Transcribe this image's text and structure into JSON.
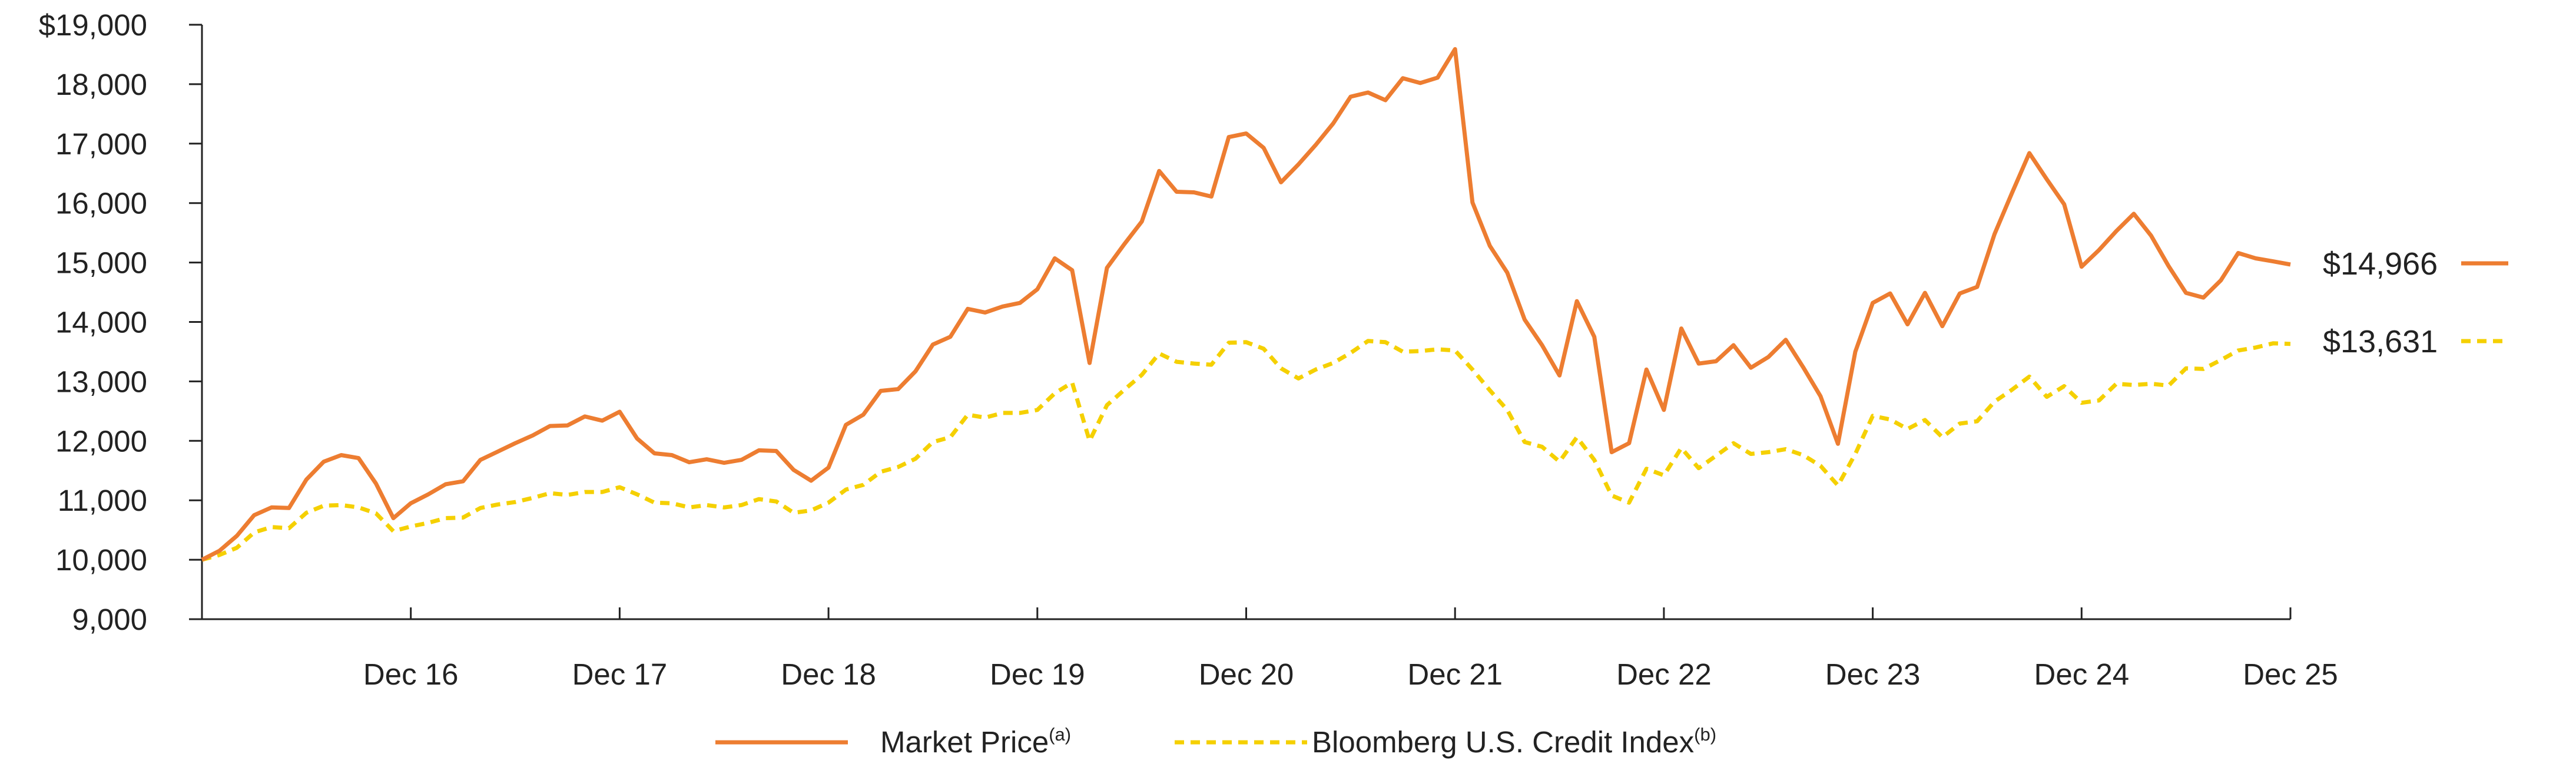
{
  "chart_data": {
    "type": "line",
    "y_ticks": [
      {
        "value": 9000,
        "label": "9,000"
      },
      {
        "value": 10000,
        "label": "10,000"
      },
      {
        "value": 11000,
        "label": "11,000"
      },
      {
        "value": 12000,
        "label": "12,000"
      },
      {
        "value": 13000,
        "label": "13,000"
      },
      {
        "value": 14000,
        "label": "14,000"
      },
      {
        "value": 15000,
        "label": "15,000"
      },
      {
        "value": 16000,
        "label": "16,000"
      },
      {
        "value": 17000,
        "label": "17,000"
      },
      {
        "value": 18000,
        "label": "18,000"
      },
      {
        "value": 19000,
        "label": "$19,000"
      }
    ],
    "ylim": [
      9000,
      19000
    ],
    "xlim": [
      0,
      120
    ],
    "x_ticks": [
      {
        "value": 12,
        "label": "Dec 16"
      },
      {
        "value": 24,
        "label": "Dec 17"
      },
      {
        "value": 36,
        "label": "Dec 18"
      },
      {
        "value": 48,
        "label": "Dec 19"
      },
      {
        "value": 60,
        "label": "Dec 20"
      },
      {
        "value": 72,
        "label": "Dec 21"
      },
      {
        "value": 84,
        "label": "Dec 22"
      },
      {
        "value": 96,
        "label": "Dec 23"
      },
      {
        "value": 108,
        "label": "Dec 24"
      },
      {
        "value": 120,
        "label": "Dec 25"
      }
    ],
    "series": [
      {
        "name": "Market Price",
        "superscript": "(a)",
        "color": "#ED7D31",
        "style": "solid",
        "end_label": "$14,966",
        "points": [
          [
            0,
            10000
          ],
          [
            1,
            10150
          ],
          [
            2,
            10400
          ],
          [
            3,
            10750
          ],
          [
            4,
            10880
          ],
          [
            5,
            10870
          ],
          [
            6,
            11350
          ],
          [
            7,
            11650
          ],
          [
            8,
            11760
          ],
          [
            9,
            11710
          ],
          [
            10,
            11280
          ],
          [
            11,
            10700
          ],
          [
            12,
            10950
          ],
          [
            13,
            11100
          ],
          [
            14,
            11270
          ],
          [
            15,
            11320
          ],
          [
            16,
            11680
          ],
          [
            17,
            11820
          ],
          [
            18,
            11960
          ],
          [
            19,
            12090
          ],
          [
            20,
            12250
          ],
          [
            21,
            12260
          ],
          [
            22,
            12410
          ],
          [
            23,
            12340
          ],
          [
            24,
            12490
          ],
          [
            25,
            12040
          ],
          [
            26,
            11790
          ],
          [
            27,
            11760
          ],
          [
            28,
            11640
          ],
          [
            29,
            11690
          ],
          [
            30,
            11630
          ],
          [
            31,
            11680
          ],
          [
            32,
            11840
          ],
          [
            33,
            11830
          ],
          [
            34,
            11510
          ],
          [
            35,
            11330
          ],
          [
            36,
            11550
          ],
          [
            37,
            12270
          ],
          [
            38,
            12440
          ],
          [
            39,
            12840
          ],
          [
            40,
            12870
          ],
          [
            41,
            13170
          ],
          [
            42,
            13620
          ],
          [
            43,
            13750
          ],
          [
            44,
            14220
          ],
          [
            45,
            14160
          ],
          [
            46,
            14260
          ],
          [
            47,
            14320
          ],
          [
            48,
            14550
          ],
          [
            49,
            15070
          ],
          [
            50,
            14870
          ],
          [
            51,
            13310
          ],
          [
            52,
            14910
          ],
          [
            53,
            15310
          ],
          [
            54,
            15690
          ],
          [
            55,
            16540
          ],
          [
            56,
            16190
          ],
          [
            57,
            16180
          ],
          [
            58,
            16110
          ],
          [
            59,
            17110
          ],
          [
            60,
            17170
          ],
          [
            61,
            16930
          ],
          [
            62,
            16350
          ],
          [
            63,
            16650
          ],
          [
            64,
            16980
          ],
          [
            65,
            17340
          ],
          [
            66,
            17790
          ],
          [
            67,
            17860
          ],
          [
            68,
            17730
          ],
          [
            69,
            18100
          ],
          [
            70,
            18020
          ],
          [
            71,
            18110
          ],
          [
            72,
            18590
          ],
          [
            73,
            16010
          ],
          [
            74,
            15280
          ],
          [
            75,
            14830
          ],
          [
            76,
            14040
          ],
          [
            77,
            13610
          ],
          [
            78,
            13100
          ],
          [
            79,
            14350
          ],
          [
            80,
            13750
          ],
          [
            81,
            11810
          ],
          [
            82,
            11960
          ],
          [
            83,
            13200
          ],
          [
            84,
            12520
          ],
          [
            85,
            13890
          ],
          [
            86,
            13300
          ],
          [
            87,
            13340
          ],
          [
            88,
            13610
          ],
          [
            89,
            13230
          ],
          [
            90,
            13410
          ],
          [
            91,
            13700
          ],
          [
            92,
            13240
          ],
          [
            93,
            12750
          ],
          [
            94,
            11950
          ],
          [
            95,
            13500
          ],
          [
            96,
            14320
          ],
          [
            97,
            14480
          ],
          [
            98,
            13960
          ],
          [
            99,
            14490
          ],
          [
            100,
            13930
          ],
          [
            101,
            14480
          ],
          [
            102,
            14590
          ],
          [
            103,
            15480
          ],
          [
            104,
            16170
          ],
          [
            105,
            16840
          ],
          [
            106,
            16400
          ],
          [
            107,
            15980
          ],
          [
            108,
            14930
          ],
          [
            109,
            15210
          ],
          [
            110,
            15530
          ],
          [
            111,
            15820
          ],
          [
            112,
            15450
          ],
          [
            113,
            14940
          ],
          [
            114,
            14490
          ],
          [
            115,
            14410
          ],
          [
            116,
            14700
          ],
          [
            117,
            15160
          ],
          [
            118,
            15070
          ],
          [
            119,
            15020
          ],
          [
            120,
            14966
          ]
        ]
      },
      {
        "name": "Bloomberg U.S. Credit Index",
        "superscript": "(b)",
        "color": "#F5D000",
        "style": "dashed",
        "end_label": "$13,631",
        "points": [
          [
            0,
            10000
          ],
          [
            1,
            10080
          ],
          [
            2,
            10200
          ],
          [
            3,
            10460
          ],
          [
            4,
            10550
          ],
          [
            5,
            10530
          ],
          [
            6,
            10790
          ],
          [
            7,
            10910
          ],
          [
            8,
            10920
          ],
          [
            9,
            10880
          ],
          [
            10,
            10780
          ],
          [
            11,
            10480
          ],
          [
            12,
            10560
          ],
          [
            13,
            10620
          ],
          [
            14,
            10700
          ],
          [
            15,
            10710
          ],
          [
            16,
            10870
          ],
          [
            17,
            10930
          ],
          [
            18,
            10970
          ],
          [
            19,
            11040
          ],
          [
            20,
            11120
          ],
          [
            21,
            11090
          ],
          [
            22,
            11140
          ],
          [
            23,
            11140
          ],
          [
            24,
            11220
          ],
          [
            25,
            11100
          ],
          [
            26,
            10960
          ],
          [
            27,
            10950
          ],
          [
            28,
            10880
          ],
          [
            29,
            10920
          ],
          [
            30,
            10880
          ],
          [
            31,
            10920
          ],
          [
            32,
            11020
          ],
          [
            33,
            10980
          ],
          [
            34,
            10790
          ],
          [
            35,
            10830
          ],
          [
            36,
            10960
          ],
          [
            37,
            11180
          ],
          [
            38,
            11260
          ],
          [
            39,
            11480
          ],
          [
            40,
            11560
          ],
          [
            41,
            11700
          ],
          [
            42,
            11980
          ],
          [
            43,
            12060
          ],
          [
            44,
            12440
          ],
          [
            45,
            12390
          ],
          [
            46,
            12470
          ],
          [
            47,
            12470
          ],
          [
            48,
            12520
          ],
          [
            49,
            12800
          ],
          [
            50,
            12980
          ],
          [
            51,
            12000
          ],
          [
            52,
            12600
          ],
          [
            53,
            12860
          ],
          [
            54,
            13110
          ],
          [
            55,
            13470
          ],
          [
            56,
            13330
          ],
          [
            57,
            13300
          ],
          [
            58,
            13280
          ],
          [
            59,
            13650
          ],
          [
            60,
            13660
          ],
          [
            61,
            13550
          ],
          [
            62,
            13220
          ],
          [
            63,
            13050
          ],
          [
            64,
            13200
          ],
          [
            65,
            13310
          ],
          [
            66,
            13480
          ],
          [
            67,
            13680
          ],
          [
            68,
            13660
          ],
          [
            69,
            13500
          ],
          [
            70,
            13510
          ],
          [
            71,
            13540
          ],
          [
            72,
            13520
          ],
          [
            73,
            13200
          ],
          [
            74,
            12850
          ],
          [
            75,
            12520
          ],
          [
            76,
            11980
          ],
          [
            77,
            11900
          ],
          [
            78,
            11650
          ],
          [
            79,
            12060
          ],
          [
            80,
            11680
          ],
          [
            81,
            11080
          ],
          [
            82,
            10960
          ],
          [
            83,
            11530
          ],
          [
            84,
            11420
          ],
          [
            85,
            11880
          ],
          [
            86,
            11540
          ],
          [
            87,
            11750
          ],
          [
            88,
            11960
          ],
          [
            89,
            11780
          ],
          [
            90,
            11810
          ],
          [
            91,
            11860
          ],
          [
            92,
            11760
          ],
          [
            93,
            11580
          ],
          [
            94,
            11250
          ],
          [
            95,
            11780
          ],
          [
            96,
            12420
          ],
          [
            97,
            12360
          ],
          [
            98,
            12200
          ],
          [
            99,
            12350
          ],
          [
            100,
            12060
          ],
          [
            101,
            12290
          ],
          [
            102,
            12330
          ],
          [
            103,
            12660
          ],
          [
            104,
            12860
          ],
          [
            105,
            13080
          ],
          [
            106,
            12740
          ],
          [
            107,
            12920
          ],
          [
            108,
            12640
          ],
          [
            109,
            12680
          ],
          [
            110,
            12960
          ],
          [
            111,
            12940
          ],
          [
            112,
            12960
          ],
          [
            113,
            12930
          ],
          [
            114,
            13220
          ],
          [
            115,
            13210
          ],
          [
            116,
            13360
          ],
          [
            117,
            13520
          ],
          [
            118,
            13570
          ],
          [
            119,
            13640
          ],
          [
            120,
            13631
          ]
        ]
      }
    ]
  }
}
